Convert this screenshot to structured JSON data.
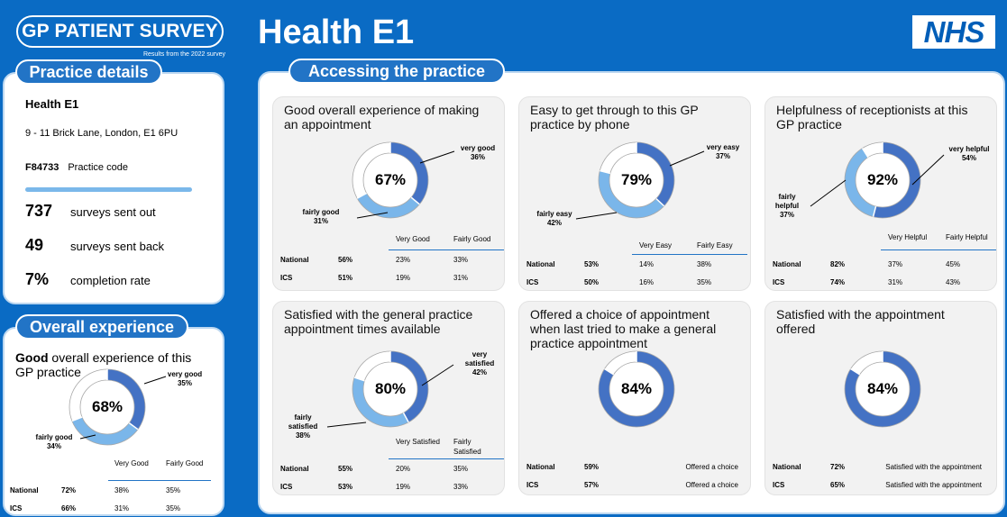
{
  "header": {
    "logo": "GP PATIENT SURVEY",
    "subtitle": "Results from the 2022 survey",
    "title": "Health E1",
    "brand": "NHS"
  },
  "colors": {
    "dark": "#4472c4",
    "light": "#7ab6ea",
    "rest": "#ffffff",
    "rim": "#a8a8a8"
  },
  "practice": {
    "heading": "Practice details",
    "name": "Health E1",
    "address": "9 - 11 Brick Lane, London, E1 6PU",
    "code": "F84733",
    "code_label": "Practice code",
    "stats": [
      {
        "value": "737",
        "label": "surveys sent out"
      },
      {
        "value": "49",
        "label": "surveys sent back"
      },
      {
        "value": "7%",
        "label": "completion rate"
      }
    ]
  },
  "overall": {
    "heading": "Overall experience",
    "title_bold": "Good",
    "title_rest": " overall experience of this GP practice",
    "pct": "68%",
    "dark_value": 35,
    "light_value": 34,
    "dark_label": [
      "very good",
      "35%"
    ],
    "light_label": [
      "fairly good",
      "34%"
    ],
    "columns": [
      "Very Good",
      "Fairly Good"
    ],
    "rows": [
      {
        "name": "National",
        "total": "72%",
        "a": "38%",
        "b": "35%"
      },
      {
        "name": "ICS",
        "total": "66%",
        "a": "31%",
        "b": "35%"
      }
    ]
  },
  "accessing": {
    "heading": "Accessing the practice",
    "cards": [
      {
        "title": "Good overall experience of making an appointment",
        "pct": "67%",
        "dark_value": 36,
        "light_value": 31,
        "dark_label": [
          "very good",
          "36%"
        ],
        "light_label": [
          "fairly good",
          "31%"
        ],
        "columns": [
          "Very Good",
          "Fairly Good"
        ],
        "rows": [
          {
            "name": "National",
            "total": "56%",
            "a": "23%",
            "b": "33%"
          },
          {
            "name": "ICS",
            "total": "51%",
            "a": "19%",
            "b": "31%"
          }
        ]
      },
      {
        "title": "Easy to get through to this GP practice by phone",
        "pct": "79%",
        "dark_value": 37,
        "light_value": 42,
        "dark_label": [
          "very easy",
          "37%"
        ],
        "light_label": [
          "fairly easy",
          "42%"
        ],
        "columns": [
          "Very Easy",
          "Fairly Easy"
        ],
        "rows": [
          {
            "name": "National",
            "total": "53%",
            "a": "14%",
            "b": "38%"
          },
          {
            "name": "ICS",
            "total": "50%",
            "a": "16%",
            "b": "35%"
          }
        ]
      },
      {
        "title": "Helpfulness of receptionists at this GP practice",
        "pct": "92%",
        "dark_value": 54,
        "light_value": 37,
        "dark_label": [
          "very helpful",
          "54%"
        ],
        "light_label": [
          "fairly",
          "helpful",
          "37%"
        ],
        "columns": [
          "Very Helpful",
          "Fairly Helpful"
        ],
        "rows": [
          {
            "name": "National",
            "total": "82%",
            "a": "37%",
            "b": "45%"
          },
          {
            "name": "ICS",
            "total": "74%",
            "a": "31%",
            "b": "43%"
          }
        ]
      },
      {
        "title": "Satisfied with the general practice appointment times available",
        "pct": "80%",
        "dark_value": 42,
        "light_value": 38,
        "dark_label": [
          "very",
          "satisfied",
          "42%"
        ],
        "light_label": [
          "fairly",
          "satisfied",
          "38%"
        ],
        "columns": [
          "Very Satisfied",
          "Fairly Satisfied"
        ],
        "rows": [
          {
            "name": "National",
            "total": "55%",
            "a": "20%",
            "b": "35%"
          },
          {
            "name": "ICS",
            "total": "53%",
            "a": "19%",
            "b": "33%"
          }
        ]
      },
      {
        "title": "Offered a choice of appointment when last tried to make a general practice appointment",
        "pct": "84%",
        "dark_value": 84,
        "light_value": 0,
        "rows": [
          {
            "name": "National",
            "total": "59%",
            "desc": "Offered a choice"
          },
          {
            "name": "ICS",
            "total": "57%",
            "desc": "Offered a choice"
          }
        ]
      },
      {
        "title": "Satisfied with the appointment offered",
        "pct": "84%",
        "dark_value": 84,
        "light_value": 0,
        "rows": [
          {
            "name": "National",
            "total": "72%",
            "desc": "Satisfied with the appointment"
          },
          {
            "name": "ICS",
            "total": "65%",
            "desc": "Satisfied with the appointment"
          }
        ]
      }
    ]
  }
}
